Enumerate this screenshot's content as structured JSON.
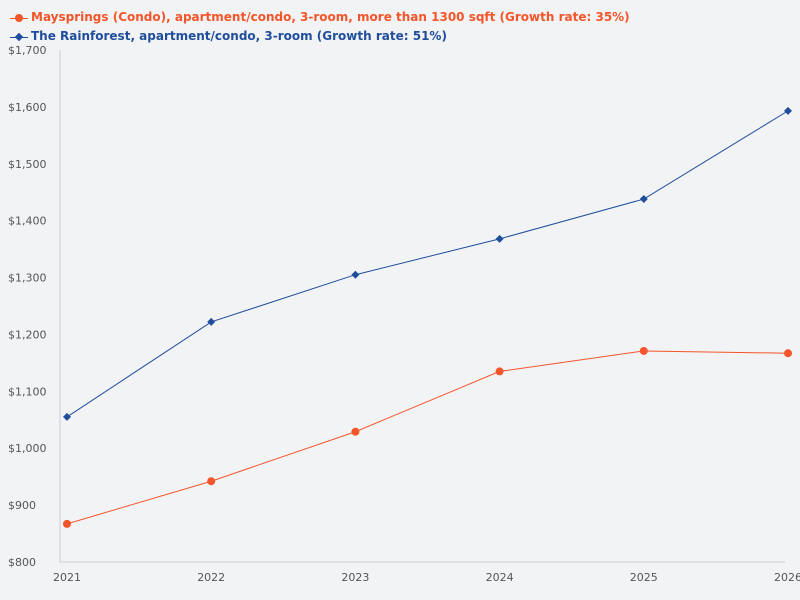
{
  "chart_data": {
    "type": "line",
    "title": "",
    "xlabel": "",
    "ylabel": "",
    "categories": [
      "2021",
      "2022",
      "2023",
      "2024",
      "2025",
      "2026"
    ],
    "x": [
      2021,
      2022,
      2023,
      2024,
      2025,
      2026
    ],
    "ylim": [
      800,
      1700
    ],
    "y_ticks": [
      800,
      900,
      1000,
      1100,
      1200,
      1300,
      1400,
      1500,
      1600,
      1700
    ],
    "y_tick_labels": [
      "$800",
      "$900",
      "$1,000",
      "$1,100",
      "$1,200",
      "$1,300",
      "$1,400",
      "$1,500",
      "$1,600",
      "$1,700"
    ],
    "grid": false,
    "legend_position": "top-left",
    "series": [
      {
        "name": "Maysprings (Condo), apartment/condo, 3-room, more than 1300 sqft (Growth rate: 35%)",
        "color": "#f4552a",
        "marker": "circle",
        "values": [
          867,
          942,
          1029,
          1135,
          1171,
          1167
        ]
      },
      {
        "name": "The Rainforest, apartment/condo, 3-room (Growth rate: 51%)",
        "color": "#1f4e9c",
        "marker": "diamond",
        "values": [
          1055,
          1222,
          1305,
          1368,
          1438,
          1593
        ]
      }
    ]
  }
}
